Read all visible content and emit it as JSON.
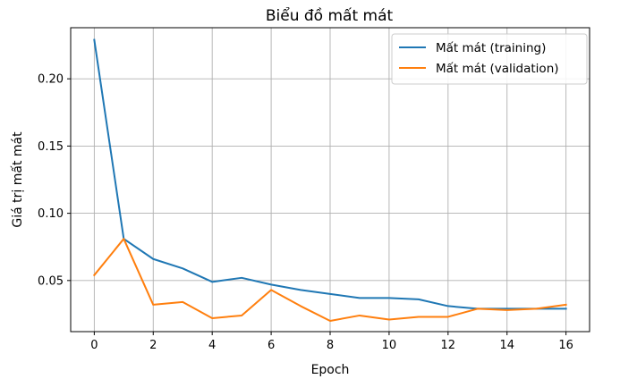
{
  "chart_data": {
    "type": "line",
    "title": "Biểu đồ mất mát",
    "xlabel": "Epoch",
    "ylabel": "Giá trị mất mát",
    "xlim": [
      -0.8,
      16.8
    ],
    "ylim": [
      0.012,
      0.238
    ],
    "xticks": [
      0,
      2,
      4,
      6,
      8,
      10,
      12,
      14,
      16
    ],
    "yticks": [
      0.05,
      0.1,
      0.15,
      0.2
    ],
    "ytick_labels": [
      "0.05",
      "0.10",
      "0.15",
      "0.20"
    ],
    "grid": true,
    "legend_position": "top-right",
    "x": [
      0,
      1,
      2,
      3,
      4,
      5,
      6,
      7,
      8,
      9,
      10,
      11,
      12,
      13,
      14,
      15,
      16
    ],
    "series": [
      {
        "name": "Mất mát (training)",
        "color": "#1f77b4",
        "values": [
          0.229,
          0.081,
          0.066,
          0.059,
          0.049,
          0.052,
          0.047,
          0.043,
          0.04,
          0.037,
          0.037,
          0.036,
          0.031,
          0.029,
          0.029,
          0.029,
          0.029
        ]
      },
      {
        "name": "Mất mát (validation)",
        "color": "#ff7f0e",
        "values": [
          0.054,
          0.081,
          0.032,
          0.034,
          0.022,
          0.024,
          0.043,
          0.031,
          0.02,
          0.024,
          0.021,
          0.023,
          0.023,
          0.029,
          0.028,
          0.029,
          0.032
        ]
      }
    ]
  }
}
